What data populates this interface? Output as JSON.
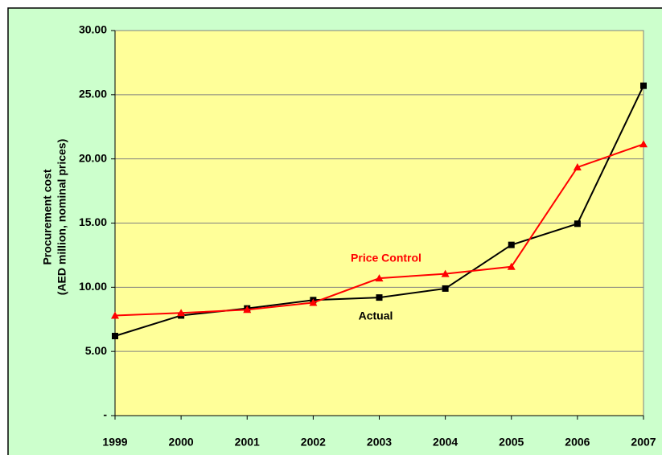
{
  "chart_data": {
    "type": "line",
    "ylabel": [
      "Procurement cost",
      "(AED million, nominal prices)"
    ],
    "x": [
      1999,
      2000,
      2001,
      2002,
      2003,
      2004,
      2005,
      2006,
      2007
    ],
    "xlim": [
      1999,
      2007
    ],
    "xticks": [
      1999,
      2000,
      2001,
      2002,
      2003,
      2004,
      2005,
      2006,
      2007
    ],
    "ylim": [
      0,
      30
    ],
    "yticks": [
      {
        "value": 0,
        "label": "-"
      },
      {
        "value": 5,
        "label": "5.00"
      },
      {
        "value": 10,
        "label": "10.00"
      },
      {
        "value": 15,
        "label": "15.00"
      },
      {
        "value": 20,
        "label": "20.00"
      },
      {
        "value": 25,
        "label": "25.00"
      },
      {
        "value": 30,
        "label": "30.00"
      }
    ],
    "grid": true,
    "series": [
      {
        "name": "Actual",
        "color": "#000000",
        "marker": "square",
        "values": [
          6.2,
          7.8,
          8.35,
          9.0,
          9.2,
          9.9,
          13.3,
          14.95,
          25.7
        ]
      },
      {
        "name": "Price Control",
        "color": "#ff0000",
        "marker": "triangle",
        "values": [
          7.8,
          8.0,
          8.25,
          8.8,
          10.7,
          11.05,
          11.6,
          19.35,
          21.15
        ]
      }
    ]
  }
}
